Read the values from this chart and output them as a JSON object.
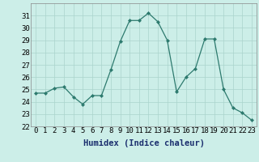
{
  "x": [
    0,
    1,
    2,
    3,
    4,
    5,
    6,
    7,
    8,
    9,
    10,
    11,
    12,
    13,
    14,
    15,
    16,
    17,
    18,
    19,
    20,
    21,
    22,
    23
  ],
  "y": [
    24.7,
    24.7,
    25.1,
    25.2,
    24.4,
    23.8,
    24.5,
    24.5,
    26.6,
    28.9,
    30.6,
    30.6,
    31.2,
    30.5,
    29.0,
    24.8,
    26.0,
    26.7,
    29.1,
    29.1,
    25.0,
    23.5,
    23.1,
    22.5
  ],
  "xlabel": "Humidex (Indice chaleur)",
  "ylim": [
    22,
    32
  ],
  "yticks": [
    22,
    23,
    24,
    25,
    26,
    27,
    28,
    29,
    30,
    31
  ],
  "xticks": [
    0,
    1,
    2,
    3,
    4,
    5,
    6,
    7,
    8,
    9,
    10,
    11,
    12,
    13,
    14,
    15,
    16,
    17,
    18,
    19,
    20,
    21,
    22,
    23
  ],
  "line_color": "#2d7a6e",
  "marker": "D",
  "marker_size": 2.0,
  "bg_color": "#cceee8",
  "grid_color": "#aad4cc",
  "xlabel_fontsize": 7.5,
  "tick_fontsize": 6.5
}
